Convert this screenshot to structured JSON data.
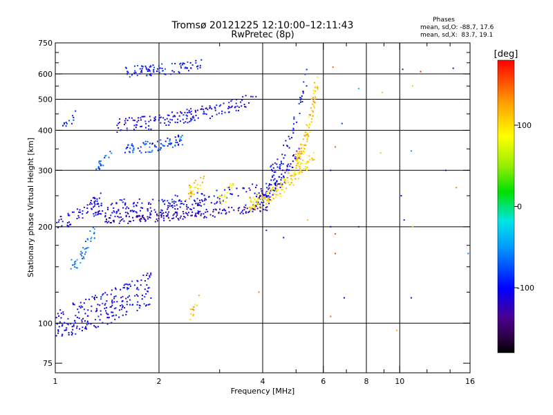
{
  "chart_data": {
    "type": "scatter",
    "title": "Tromsø 20121225 12:10:00–12:11:43",
    "subtitle": "RwPretec (8p)",
    "xlabel": "Frequency [MHz]",
    "ylabel": "Stationary phase Virtual Height [km]",
    "x_scale": "log",
    "y_scale": "log",
    "xlim": [
      1,
      16
    ],
    "ylim": [
      70,
      750
    ],
    "x_ticks": [
      1,
      2,
      4,
      6,
      8,
      10,
      16
    ],
    "x_tick_labels": [
      "1",
      "2",
      "4",
      "6",
      "8",
      "10",
      "16"
    ],
    "x_minor_ticks": [
      3,
      5,
      7,
      9,
      12,
      14
    ],
    "y_ticks": [
      75,
      100,
      200,
      300,
      400,
      500,
      600,
      750
    ],
    "y_tick_labels": [
      "75",
      "100",
      "200",
      "300",
      "400",
      "500",
      "600",
      "750"
    ],
    "y_minor_ticks": [
      125,
      150,
      175,
      250,
      350,
      450,
      550,
      650,
      700
    ],
    "grid_x": [
      2,
      4,
      6,
      8,
      10
    ],
    "grid_y": [
      100,
      200,
      300,
      400,
      500,
      600
    ],
    "grid": true,
    "colorbar": {
      "label": "[deg]",
      "range": [
        -180,
        180
      ],
      "ticks": [
        100,
        0,
        -100
      ],
      "tick_labels": [
        "100",
        "0",
        "-100"
      ]
    },
    "phase_stats": {
      "title": "Phases",
      "line_o": "mean, sd,O: -88.7, 17.6",
      "line_x": "mean, sd,X:  83.7, 19.1"
    },
    "traces": [
      {
        "x": [
          1.0,
          1.35
        ],
        "y": [
          205,
          245
        ],
        "phase": -105,
        "spread": 0.05,
        "n": 60
      },
      {
        "x": [
          1.25,
          2.7
        ],
        "y": [
          225,
          232
        ],
        "phase": -110,
        "spread": 0.05,
        "n": 120
      },
      {
        "x": [
          1.35,
          4.2
        ],
        "y": [
          210,
          232
        ],
        "phase": -125,
        "spread": 0.03,
        "n": 170
      },
      {
        "x": [
          1.5,
          4.5
        ],
        "y": [
          232,
          270
        ],
        "phase": -105,
        "spread": 0.05,
        "n": 110
      },
      {
        "x": [
          3.8,
          5.2
        ],
        "y": [
          240,
          360
        ],
        "phase": -112,
        "spread": 0.05,
        "n": 90
      },
      {
        "x": [
          4.2,
          5.4
        ],
        "y": [
          290,
          600
        ],
        "phase": -100,
        "spread": 0.06,
        "n": 60
      },
      {
        "x": [
          3.6,
          5.6
        ],
        "y": [
          235,
          330
        ],
        "phase": 100,
        "spread": 0.05,
        "n": 150
      },
      {
        "x": [
          5.0,
          5.75
        ],
        "y": [
          320,
          560
        ],
        "phase": 110,
        "spread": 0.06,
        "n": 100
      },
      {
        "x": [
          1.5,
          3.8
        ],
        "y": [
          415,
          500
        ],
        "phase": -108,
        "spread": 0.05,
        "n": 170
      },
      {
        "x": [
          1.05,
          1.15
        ],
        "y": [
          410,
          450
        ],
        "phase": -100,
        "spread": 0.03,
        "n": 12
      },
      {
        "x": [
          1.6,
          2.35
        ],
        "y": [
          350,
          375
        ],
        "phase": -80,
        "spread": 0.04,
        "n": 80
      },
      {
        "x": [
          1.55,
          2.7
        ],
        "y": [
          610,
          640
        ],
        "phase": -95,
        "spread": 0.04,
        "n": 90
      },
      {
        "x": [
          1.3,
          1.45
        ],
        "y": [
          305,
          345
        ],
        "phase": -70,
        "spread": 0.03,
        "n": 20
      },
      {
        "x": [
          1.1,
          1.3
        ],
        "y": [
          150,
          195
        ],
        "phase": -60,
        "spread": 0.05,
        "n": 40
      },
      {
        "x": [
          1.0,
          1.9
        ],
        "y": [
          102,
          130
        ],
        "phase": -105,
        "spread": 0.12,
        "n": 230
      },
      {
        "x": [
          2.4,
          2.7
        ],
        "y": [
          255,
          285
        ],
        "phase": 110,
        "spread": 0.05,
        "n": 30
      },
      {
        "x": [
          3.0,
          3.3
        ],
        "y": [
          240,
          280
        ],
        "phase": 95,
        "spread": 0.04,
        "n": 20
      },
      {
        "x": [
          2.4,
          2.6
        ],
        "y": [
          105,
          118
        ],
        "phase": 115,
        "spread": 0.04,
        "n": 12
      }
    ],
    "scattered_points": [
      {
        "x": 6.4,
        "y": 630,
        "phase": 150
      },
      {
        "x": 6.3,
        "y": 300,
        "phase": -120
      },
      {
        "x": 6.3,
        "y": 200,
        "phase": -100
      },
      {
        "x": 6.5,
        "y": 355,
        "phase": 150
      },
      {
        "x": 6.5,
        "y": 190,
        "phase": 160
      },
      {
        "x": 6.5,
        "y": 165,
        "phase": 160
      },
      {
        "x": 6.3,
        "y": 105,
        "phase": 150
      },
      {
        "x": 6.8,
        "y": 420,
        "phase": -80
      },
      {
        "x": 6.9,
        "y": 120,
        "phase": -100
      },
      {
        "x": 7.6,
        "y": 540,
        "phase": -30
      },
      {
        "x": 7.6,
        "y": 200,
        "phase": -140
      },
      {
        "x": 8.9,
        "y": 525,
        "phase": 110
      },
      {
        "x": 8.8,
        "y": 340,
        "phase": 110
      },
      {
        "x": 9.8,
        "y": 95,
        "phase": 120
      },
      {
        "x": 10.1,
        "y": 250,
        "phase": -100
      },
      {
        "x": 10.3,
        "y": 210,
        "phase": -120
      },
      {
        "x": 10.2,
        "y": 620,
        "phase": -140
      },
      {
        "x": 10.9,
        "y": 550,
        "phase": 60
      },
      {
        "x": 10.8,
        "y": 345,
        "phase": -50
      },
      {
        "x": 10.9,
        "y": 200,
        "phase": 110
      },
      {
        "x": 10.8,
        "y": 120,
        "phase": -110
      },
      {
        "x": 11.5,
        "y": 610,
        "phase": 170
      },
      {
        "x": 13.6,
        "y": 300,
        "phase": -120
      },
      {
        "x": 14.3,
        "y": 625,
        "phase": -120
      },
      {
        "x": 14.6,
        "y": 265,
        "phase": 140
      },
      {
        "x": 15.8,
        "y": 165,
        "phase": -60
      },
      {
        "x": 4.1,
        "y": 195,
        "phase": -90
      },
      {
        "x": 4.6,
        "y": 185,
        "phase": -110
      },
      {
        "x": 3.9,
        "y": 125,
        "phase": 140
      },
      {
        "x": 5.4,
        "y": 210,
        "phase": 110
      }
    ]
  }
}
